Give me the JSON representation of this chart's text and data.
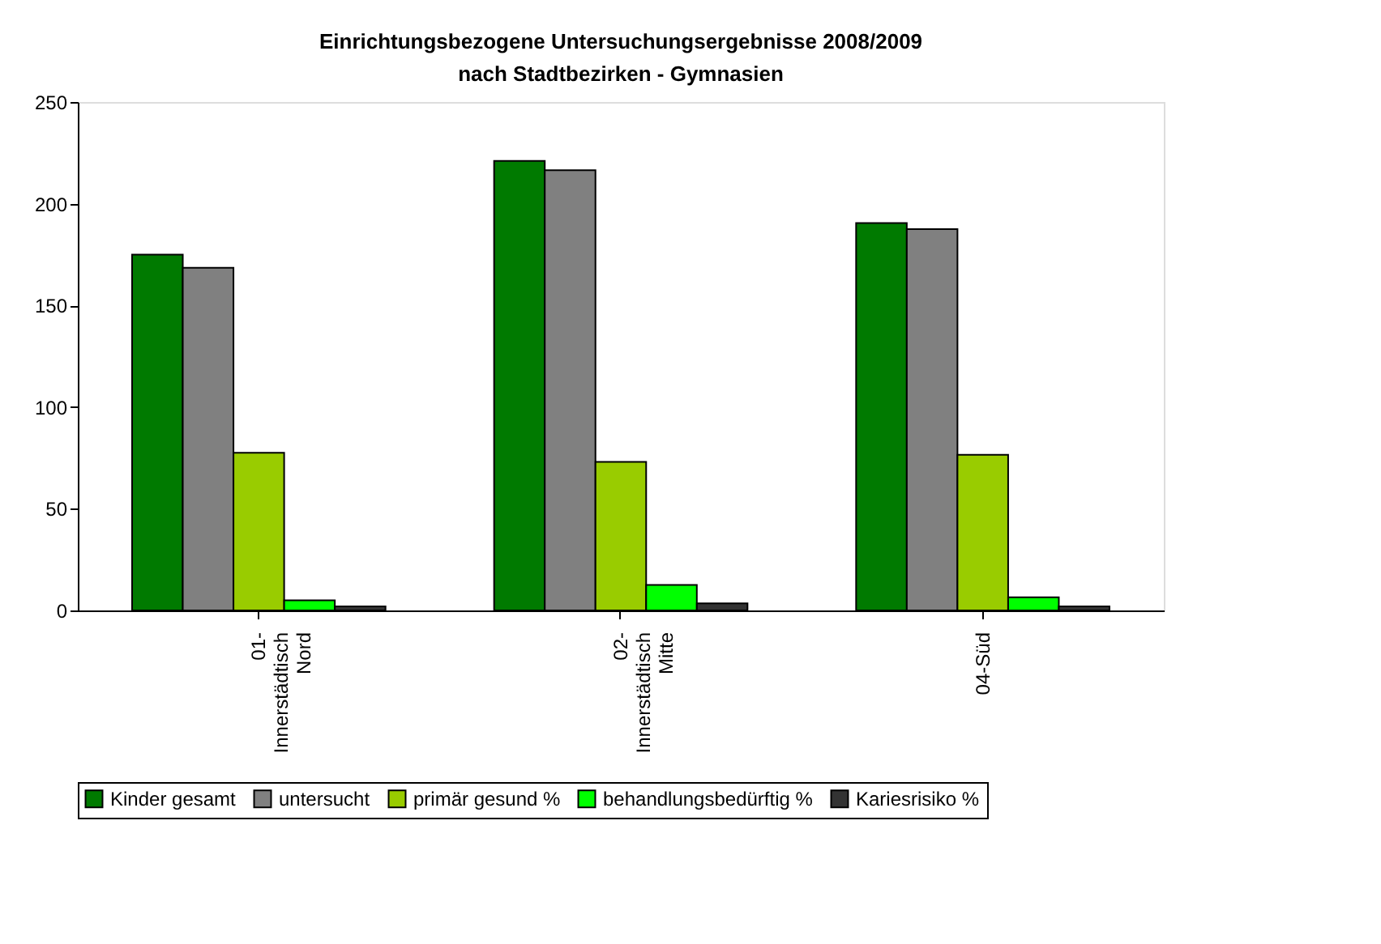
{
  "chart_data": {
    "type": "bar",
    "title": "Einrichtungsbezogene Untersuchungsergebnisse 2008/2009\nnach Stadtbezirken - Gymnasien",
    "categories": [
      "01-\nInnerstädtisch\nNord",
      "02-\nInnerstädtisch\nMitte",
      "04-Süd"
    ],
    "series": [
      {
        "name": "Kinder gesamt",
        "color": "#007a00",
        "values": [
          175,
          221,
          190.5
        ]
      },
      {
        "name": "untersucht",
        "color": "#808080",
        "values": [
          168.5,
          216.5,
          187.5
        ]
      },
      {
        "name": "primär gesund %",
        "color": "#99cc00",
        "values": [
          77.5,
          73,
          76.5
        ]
      },
      {
        "name": "behandlungsbedürftig %",
        "color": "#00ff00",
        "values": [
          5,
          12.5,
          6.5
        ]
      },
      {
        "name": "Kariesrisiko %",
        "color": "#333333",
        "values": [
          2,
          3.5,
          2
        ]
      }
    ],
    "ylim": [
      0,
      250
    ],
    "yticks": [
      0,
      50,
      100,
      150,
      200,
      250
    ],
    "grid": false,
    "legend": "bottom"
  }
}
